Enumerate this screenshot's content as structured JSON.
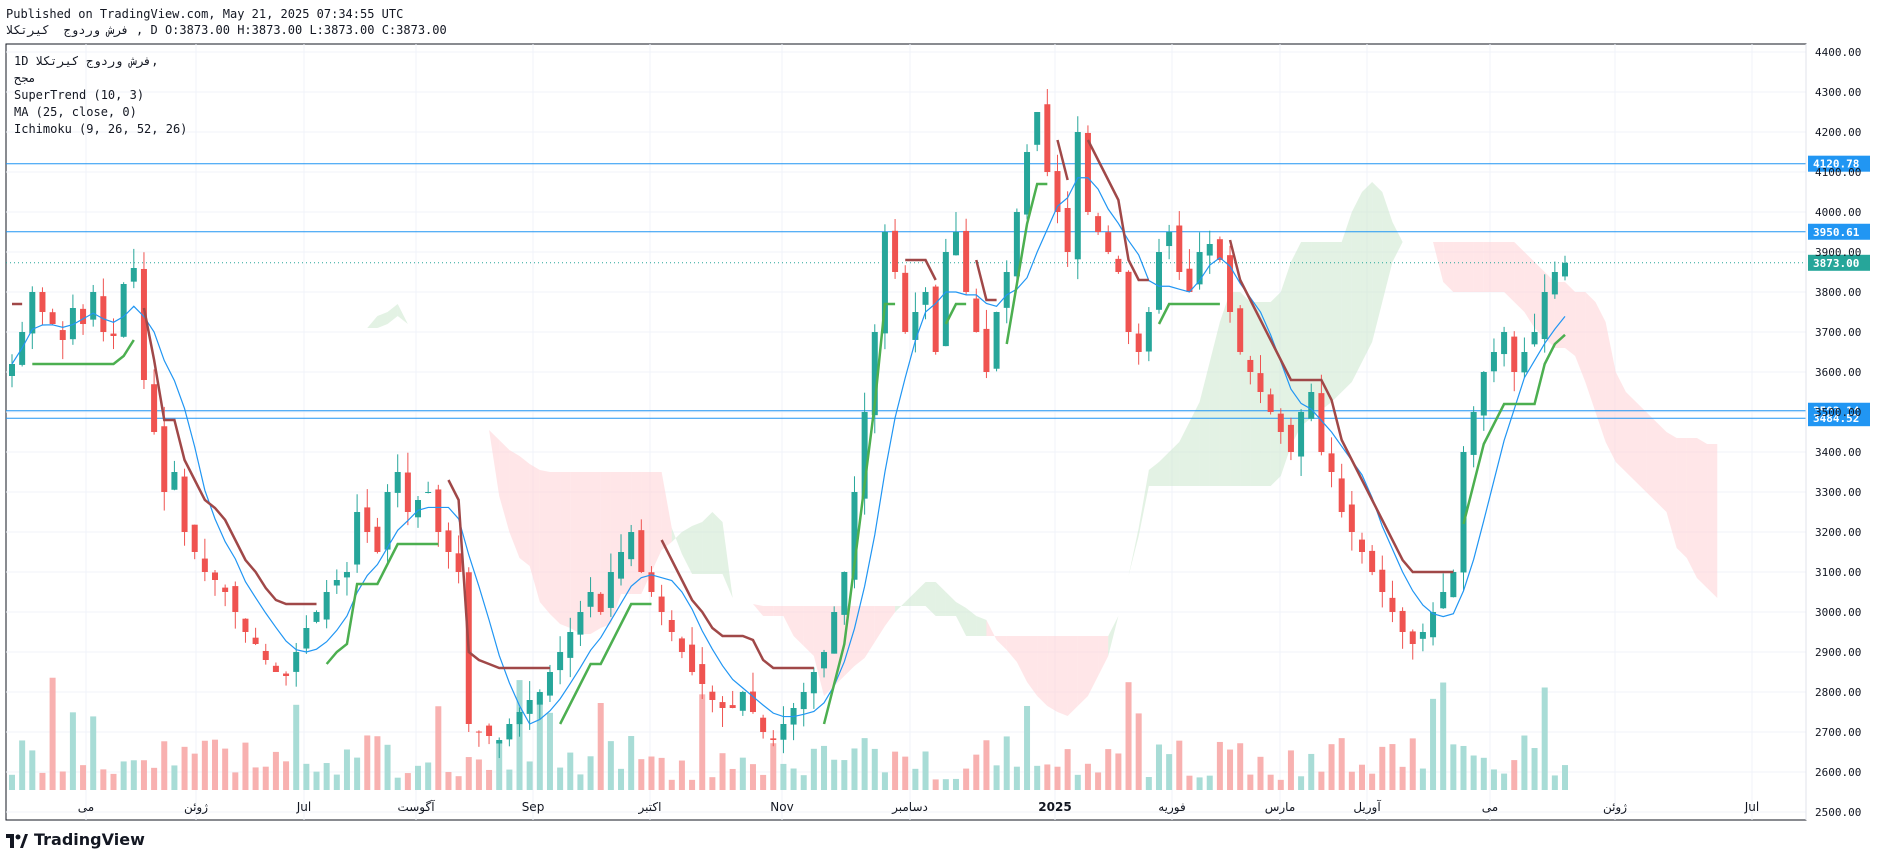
{
  "header": {
    "published_line": "Published on TradingView.com, May 21, 2025 07:34:55 UTC",
    "ohlc_line": "فرش وردوج  کیرتکلا , D O:3873.00 H:3873.00 L:3873.00 C:3873.00"
  },
  "legend": {
    "symbol_line": "1D  فرش وردوج  کیرتکلا,",
    "symbol_sub": "مجح",
    "indicator_1": "SuperTrend (10, 3)",
    "indicator_2": "MA (25, close, 0)",
    "indicator_3": "Ichimoku (9, 26, 52, 26)"
  },
  "branding": {
    "logo_text": "TradingView"
  },
  "colors": {
    "up": "#26a69a",
    "down": "#ef5350",
    "supertrend_up": "#4caf50",
    "supertrend_down": "#a04848",
    "ma": "#2196f3",
    "hline": "#2196f3",
    "cloud_bull": "#c8e6c9",
    "cloud_bear": "#ffcdd2"
  },
  "chart_data": {
    "type": "candlestick",
    "ylim": [
      2480,
      4420
    ],
    "y_ticks": [
      2500,
      2600,
      2700,
      2800,
      2900,
      3000,
      3100,
      3200,
      3300,
      3400,
      3500,
      3600,
      3700,
      3800,
      3900,
      4000,
      4100,
      4200,
      4300,
      4400
    ],
    "x_tick_labels": [
      "می",
      "ژوئن",
      "Jul",
      "آگوست",
      "Sep",
      "اکتبر",
      "Nov",
      "دسامبر",
      "2025",
      "فوریه",
      "مارس",
      "آوریل",
      "می",
      "ژوئن",
      "Jul"
    ],
    "horizontal_lines": [
      {
        "value": 4120.78,
        "label": "4120.78"
      },
      {
        "value": 3950.61,
        "label": "3950.61"
      },
      {
        "value": 3503.14,
        "label": "3503.14"
      },
      {
        "value": 3484.52,
        "label": "3484.52"
      }
    ],
    "last_price": {
      "value": 3873.0,
      "label": "3873.00"
    },
    "close_series": [
      3620,
      3700,
      3800,
      3750,
      3720,
      3680,
      3760,
      3720,
      3800,
      3700,
      3690,
      3820,
      3860,
      3580,
      3450,
      3300,
      3350,
      3200,
      3150,
      3100,
      3080,
      3050,
      3000,
      2950,
      2920,
      2880,
      2850,
      2840,
      2900,
      2960,
      3000,
      3050,
      3080,
      3100,
      3250,
      3200,
      3150,
      3300,
      3350,
      3250,
      3280,
      3300,
      3200,
      3150,
      3100,
      2720,
      2700,
      2690,
      2680,
      2720,
      2750,
      2780,
      2800,
      2850,
      2900,
      2950,
      3000,
      3050,
      3000,
      3100,
      3150,
      3200,
      3100,
      3050,
      3000,
      2950,
      2900,
      2850,
      2820,
      2780,
      2760,
      2760,
      2800,
      2750,
      2700,
      2680,
      2720,
      2760,
      2800,
      2850,
      2900,
      3000,
      3100,
      3300,
      3500,
      3700,
      3950,
      3850,
      3700,
      3750,
      3800,
      3650,
      3900,
      3950,
      3800,
      3700,
      3600,
      3750,
      3850,
      4000,
      4150,
      4250,
      4100,
      4000,
      3900,
      4200,
      4000,
      3950,
      3900,
      3850,
      3700,
      3650,
      3750,
      3900,
      3950,
      3850,
      3800,
      3900,
      3920,
      3880,
      3750,
      3650,
      3600,
      3550,
      3500,
      3450,
      3400,
      3500,
      3550,
      3400,
      3350,
      3250,
      3200,
      3150,
      3100,
      3050,
      3000,
      2950,
      2920,
      2950,
      3000,
      3050,
      3100,
      3400,
      3500,
      3600,
      3650,
      3700,
      3600,
      3650,
      3700,
      3800,
      3850,
      3873
    ]
  }
}
